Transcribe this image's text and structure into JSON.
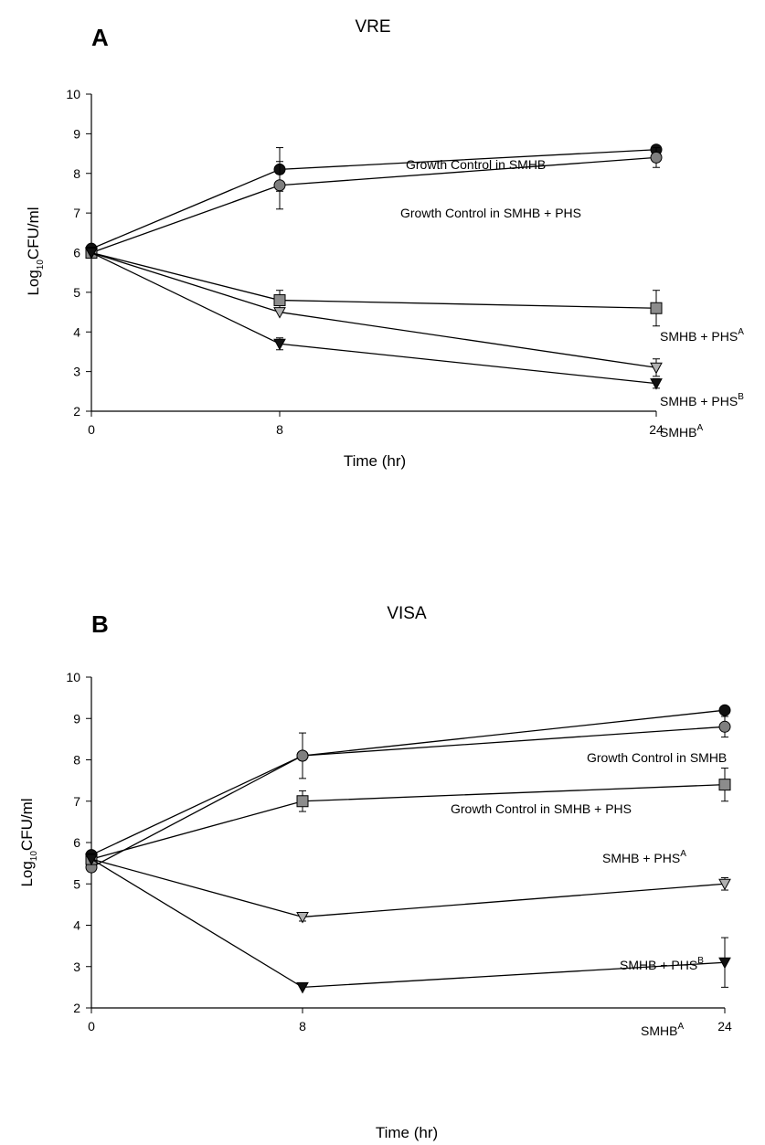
{
  "chart_data": [
    {
      "type": "line",
      "panel_letter": "A",
      "title": "VRE",
      "xlabel": "Time (hr)",
      "ylabel": "Log10CFU/ml",
      "ylabel_parts": {
        "base": "Log",
        "sub": "10",
        "rest": "CFU/ml"
      },
      "x_ticks": [
        0,
        8,
        24
      ],
      "y_ticks": [
        2,
        3,
        4,
        5,
        6,
        7,
        8,
        9,
        10
      ],
      "xlim": [
        0,
        24
      ],
      "ylim": [
        2,
        10
      ],
      "grid": false,
      "series": [
        {
          "name": "Growth Control in SMHB",
          "label_main": "Growth Control in SMHB",
          "label_sup": "",
          "marker": "circle",
          "fill": "#111111",
          "x": [
            0,
            8,
            24
          ],
          "y": [
            6.1,
            8.1,
            8.6
          ],
          "err": [
            0,
            0.55,
            0.1
          ]
        },
        {
          "name": "Growth Control in SMHB + PHS",
          "label_main": "Growth Control in SMHB + PHS",
          "label_sup": "",
          "marker": "circle",
          "fill": "#7f7f7f",
          "x": [
            0,
            8,
            24
          ],
          "y": [
            6.0,
            7.7,
            8.4
          ],
          "err": [
            0,
            0.6,
            0.25
          ]
        },
        {
          "name": "SMHB + PHSA",
          "label_main": "SMHB + PHS",
          "label_sup": "A",
          "marker": "square",
          "fill": "#8c8c8c",
          "x": [
            0,
            8,
            24
          ],
          "y": [
            6.0,
            4.8,
            4.6
          ],
          "err": [
            0,
            0.25,
            0.45
          ]
        },
        {
          "name": "SMHB + PHSB",
          "label_main": "SMHB + PHS",
          "label_sup": "B",
          "marker": "triangle-down",
          "fill": "#b0b0b0",
          "x": [
            0,
            8,
            24
          ],
          "y": [
            6.0,
            4.5,
            3.1
          ],
          "err": [
            0,
            0,
            0.22
          ]
        },
        {
          "name": "SMHBA",
          "label_main": "SMHB",
          "label_sup": "A",
          "marker": "triangle-down",
          "fill": "#111111",
          "x": [
            0,
            8,
            24
          ],
          "y": [
            6.0,
            3.7,
            2.7
          ],
          "err": [
            0,
            0.15,
            0.12
          ]
        }
      ]
    },
    {
      "type": "line",
      "panel_letter": "B",
      "title": "VISA",
      "xlabel": "Time (hr)",
      "ylabel": "Log10CFU/ml",
      "ylabel_parts": {
        "base": "Log",
        "sub": "10",
        "rest": "CFU/ml"
      },
      "x_ticks": [
        0,
        8,
        24
      ],
      "y_ticks": [
        2,
        3,
        4,
        5,
        6,
        7,
        8,
        9,
        10
      ],
      "xlim": [
        0,
        24
      ],
      "ylim": [
        2,
        10
      ],
      "grid": false,
      "series": [
        {
          "name": "Growth Control in SMHB",
          "label_main": "Growth Control in SMHB",
          "label_sup": "",
          "marker": "circle",
          "fill": "#111111",
          "x": [
            0,
            8,
            24
          ],
          "y": [
            5.7,
            8.1,
            9.2
          ],
          "err": [
            0,
            0,
            0
          ]
        },
        {
          "name": "Growth Control in SMHB + PHS",
          "label_main": "Growth Control in SMHB + PHS",
          "label_sup": "",
          "marker": "circle",
          "fill": "#7f7f7f",
          "x": [
            0,
            8,
            24
          ],
          "y": [
            5.4,
            8.1,
            8.8
          ],
          "err": [
            0,
            0.55,
            0.25
          ]
        },
        {
          "name": "SMHB + PHSA",
          "label_main": "SMHB + PHS",
          "label_sup": "A",
          "marker": "square",
          "fill": "#8c8c8c",
          "x": [
            0,
            8,
            24
          ],
          "y": [
            5.6,
            7.0,
            7.4
          ],
          "err": [
            0,
            0.25,
            0.4
          ]
        },
        {
          "name": "SMHB + PHSB",
          "label_main": "SMHB + PHS",
          "label_sup": "B",
          "marker": "triangle-down",
          "fill": "#b0b0b0",
          "x": [
            0,
            8,
            24
          ],
          "y": [
            5.6,
            4.2,
            5.0
          ],
          "err": [
            0,
            0.1,
            0.15
          ]
        },
        {
          "name": "SMHBA",
          "label_main": "SMHB",
          "label_sup": "A",
          "marker": "triangle-down",
          "fill": "#111111",
          "x": [
            0,
            8,
            24
          ],
          "y": [
            5.6,
            2.5,
            3.1
          ],
          "err": [
            0,
            0,
            0.6
          ]
        }
      ]
    }
  ]
}
